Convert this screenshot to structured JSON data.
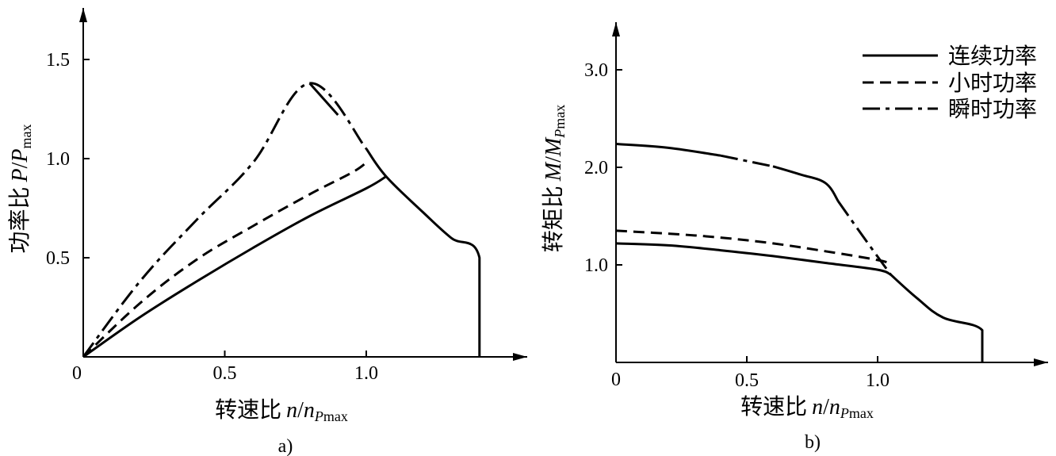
{
  "chart_data": [
    {
      "type": "line",
      "panel_label": "a)",
      "xlabel": {
        "prefix": "转速比",
        "var": "n",
        "slash": "/",
        "var2": "n",
        "sub": "P",
        "sub2": "max"
      },
      "ylabel": {
        "prefix": "功率比",
        "var": "P",
        "slash": "/",
        "var2": "P",
        "sub": "max"
      },
      "origin_label": "0",
      "xticks": [
        "0.5",
        "1.0"
      ],
      "xtick_values": [
        0.5,
        1.0
      ],
      "yticks": [
        "0.5",
        "1.0",
        "1.5"
      ],
      "ytick_values": [
        0.5,
        1.0,
        1.5
      ],
      "xlim": [
        0,
        1.55
      ],
      "ylim": [
        0,
        1.7
      ],
      "grid": false,
      "series": [
        {
          "style": "solid",
          "x": [
            0,
            0.2,
            0.4,
            0.6,
            0.8,
            1.0,
            1.07
          ],
          "y": [
            0,
            0.2,
            0.38,
            0.55,
            0.71,
            0.85,
            0.91
          ]
        },
        {
          "style": "dashed",
          "x": [
            0,
            0.2,
            0.4,
            0.6,
            0.8,
            0.95,
            1.0
          ],
          "y": [
            0,
            0.27,
            0.49,
            0.66,
            0.82,
            0.93,
            0.98
          ]
        },
        {
          "style": "dashdot",
          "x": [
            0,
            0.2,
            0.4,
            0.6,
            0.8,
            1.0
          ],
          "y": [
            0,
            0.38,
            0.69,
            0.98,
            1.38,
            1.05
          ]
        },
        {
          "style": "solid",
          "x": [
            0.8,
            0.9
          ],
          "y": [
            1.38,
            1.22
          ]
        },
        {
          "style": "solid",
          "x": [
            1.0,
            1.07,
            1.2,
            1.3,
            1.4,
            1.4
          ],
          "y": [
            1.05,
            0.91,
            0.73,
            0.6,
            0.5,
            0
          ]
        }
      ]
    },
    {
      "type": "line",
      "panel_label": "b)",
      "xlabel": {
        "prefix": "转速比",
        "var": "n",
        "slash": "/",
        "var2": "n",
        "sub": "P",
        "sub2": "max"
      },
      "ylabel": {
        "prefix": "转矩比",
        "var": "M",
        "slash": "/",
        "var2": "M",
        "sub": "P",
        "sub2": "max"
      },
      "origin_label": "0",
      "xticks": [
        "0.5",
        "1.0"
      ],
      "xtick_values": [
        0.5,
        1.0
      ],
      "yticks": [
        "1.0",
        "2.0",
        "3.0"
      ],
      "ytick_values": [
        1.0,
        2.0,
        3.0
      ],
      "xlim": [
        0,
        1.6
      ],
      "ylim": [
        0,
        3.6
      ],
      "grid": false,
      "legend_position": "top-right",
      "legend": [
        {
          "style": "solid",
          "label": "连续功率"
        },
        {
          "style": "dashed",
          "label": "小时功率"
        },
        {
          "style": "dashdot",
          "label": "瞬时功率"
        }
      ],
      "series": [
        {
          "style": "solid",
          "x": [
            0,
            0.2,
            0.4,
            0.6,
            0.8,
            1.0,
            1.05
          ],
          "y": [
            1.22,
            1.2,
            1.15,
            1.09,
            1.02,
            0.95,
            0.9
          ]
        },
        {
          "style": "dashed",
          "x": [
            0,
            0.2,
            0.4,
            0.6,
            0.8,
            1.0,
            1.05
          ],
          "y": [
            1.35,
            1.32,
            1.28,
            1.22,
            1.14,
            1.05,
            1.01
          ]
        },
        {
          "style": "solid",
          "x": [
            0,
            0.2,
            0.4
          ],
          "y": [
            2.24,
            2.2,
            2.12
          ]
        },
        {
          "style": "dashdot",
          "x": [
            0.4,
            0.6
          ],
          "y": [
            2.12,
            2.01
          ]
        },
        {
          "style": "solid",
          "x": [
            0.6,
            0.7,
            0.8,
            0.85
          ],
          "y": [
            2.01,
            1.93,
            1.84,
            1.65
          ]
        },
        {
          "style": "dashdot",
          "x": [
            0.85,
            0.95,
            1.05
          ],
          "y": [
            1.65,
            1.27,
            0.9
          ]
        },
        {
          "style": "solid",
          "x": [
            1.05,
            1.15,
            1.25,
            1.4,
            1.4
          ],
          "y": [
            0.9,
            0.66,
            0.46,
            0.33,
            0
          ]
        }
      ]
    }
  ]
}
